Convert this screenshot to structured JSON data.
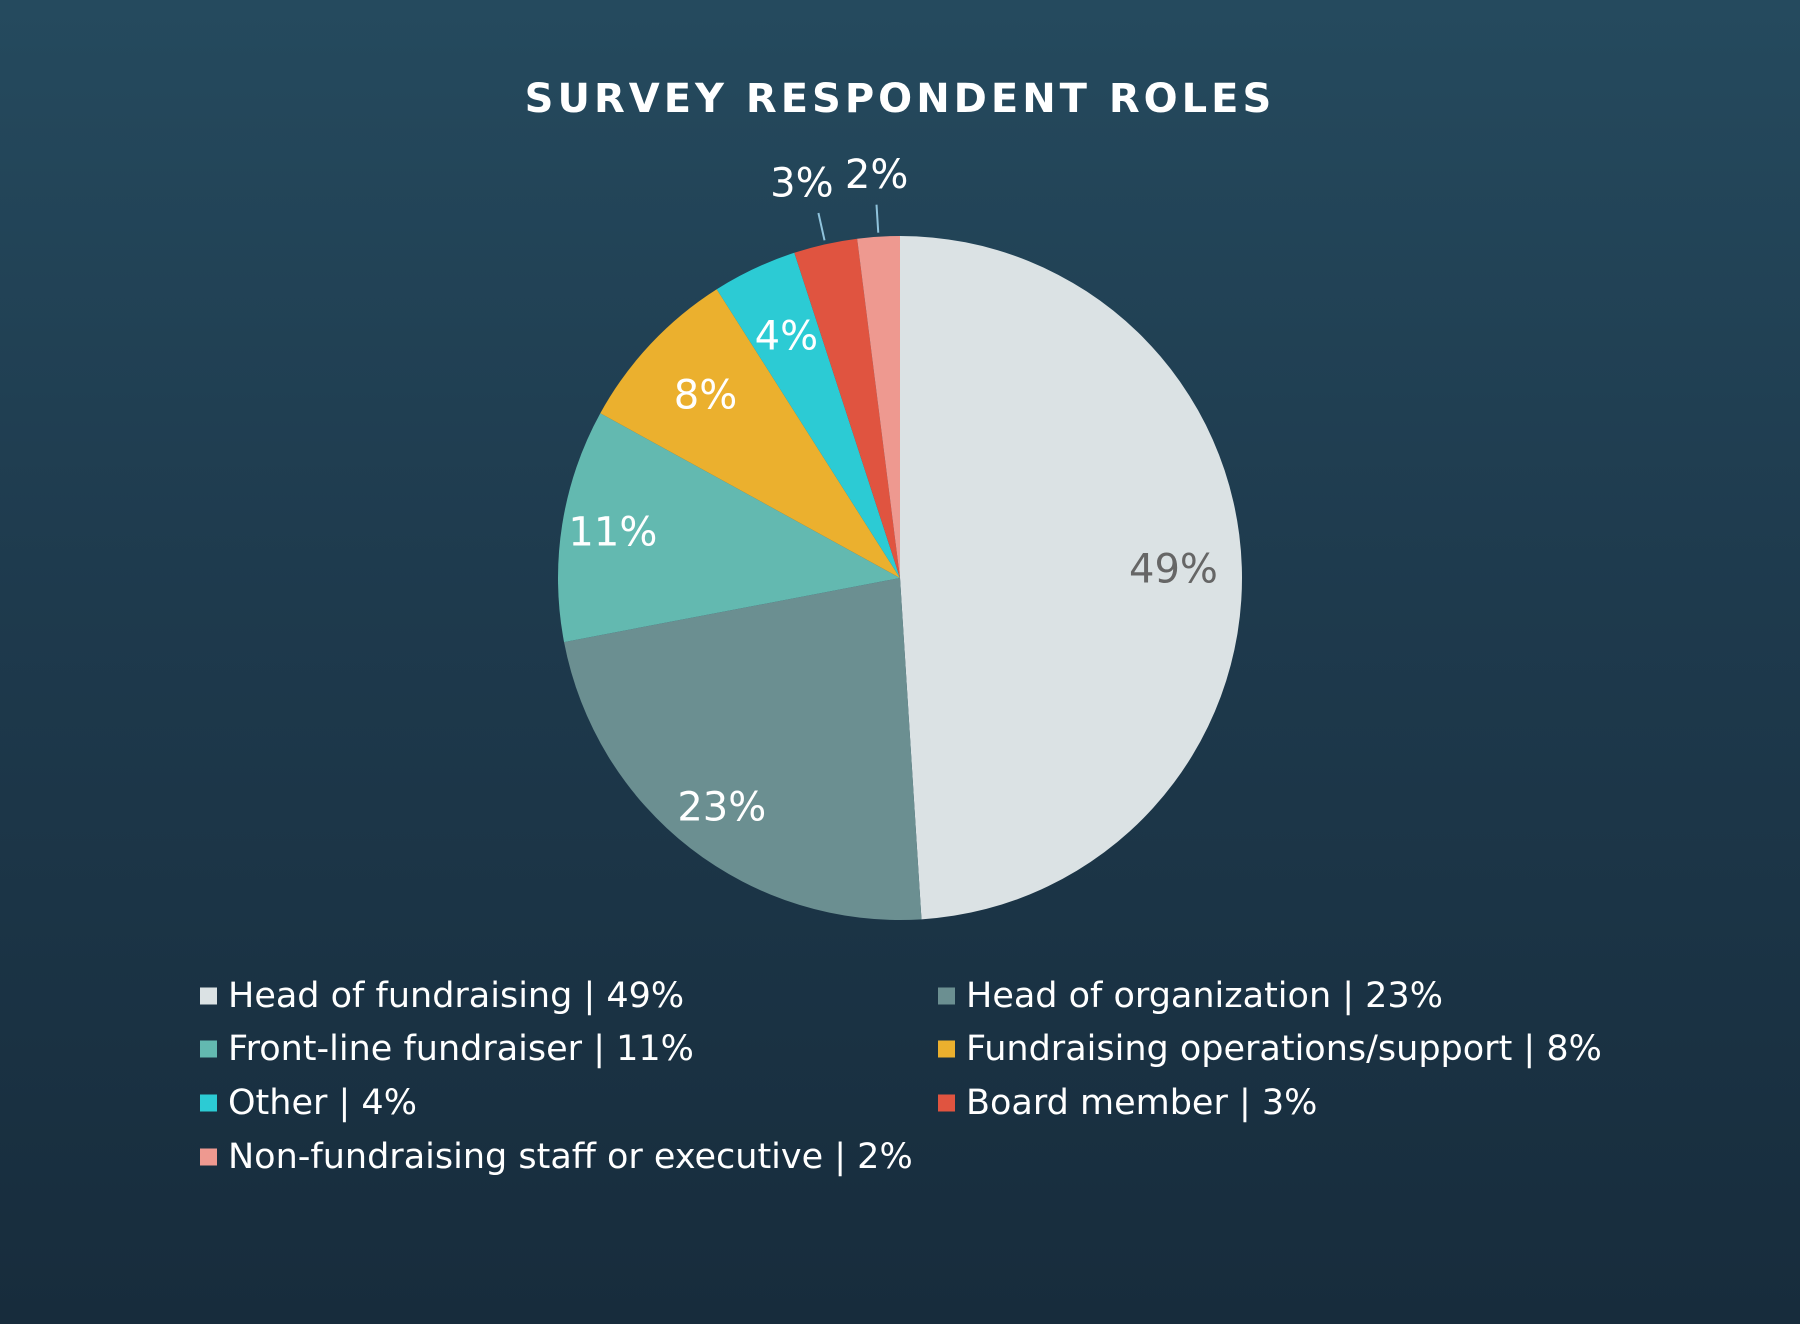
{
  "chart_data": {
    "type": "pie",
    "title": "SURVEY RESPONDENT ROLES",
    "categories": [
      "Head of fundraising",
      "Head of organization",
      "Front-line fundraiser",
      "Fundraising operations/support",
      "Other",
      "Board member",
      "Non-fundraising staff or executive"
    ],
    "values": [
      49,
      23,
      11,
      8,
      4,
      3,
      2
    ],
    "unit": "%",
    "slice_labels": [
      "49%",
      "23%",
      "11%",
      "8%",
      "4%",
      "3%",
      "2%"
    ],
    "colors": [
      "#dbe2e4",
      "#6b8f91",
      "#63b9b0",
      "#ebb02e",
      "#2ccbd4",
      "#e05440",
      "#ee9990"
    ],
    "label_colors": [
      "#666666",
      "#ffffff",
      "#ffffff",
      "#ffffff",
      "#ffffff",
      "#ffffff",
      "#ffffff"
    ],
    "legend": {
      "placement": "bottom",
      "columns": 2,
      "entries": [
        "Head of fundraising | 49%",
        "Head of organization | 23%",
        "Front-line fundraiser | 11%",
        "Fundraising operations/support | 8%",
        "Other | 4%",
        "Board member | 3%",
        "Non-fundraising staff or executive | 2%"
      ]
    },
    "start_angle": "12 o'clock",
    "direction": "clockwise"
  },
  "colors": {
    "background_top": "#254a5e",
    "background_bottom": "#172c3c",
    "leader_line": "#8fc3dc"
  }
}
